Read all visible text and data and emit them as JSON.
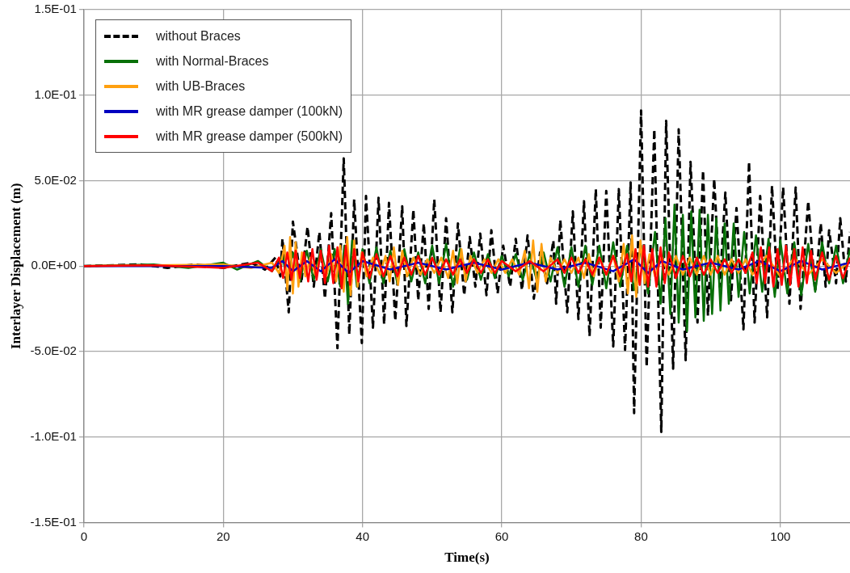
{
  "chart_data": {
    "type": "line",
    "xlabel": "Time(s)",
    "ylabel": "Interlayer Displacement (m)",
    "xlim": [
      0,
      110
    ],
    "xticks": [
      0,
      20,
      40,
      60,
      80,
      100
    ],
    "ylim": [
      -0.15,
      0.15
    ],
    "yticks": [
      {
        "value": -0.15,
        "label": "-1.5E-01"
      },
      {
        "value": -0.1,
        "label": "-1.0E-01"
      },
      {
        "value": -0.05,
        "label": "-5.0E-02"
      },
      {
        "value": 0,
        "label": "0.0E+00"
      },
      {
        "value": 0.05,
        "label": "5.0E-02"
      },
      {
        "value": 0.1,
        "label": "1.0E-01"
      },
      {
        "value": 0.15,
        "label": "1.5E-01"
      }
    ],
    "grid": true,
    "legend": "top left",
    "marker": "none",
    "series": [
      {
        "name": "without Braces",
        "color": "#000000",
        "line_style": "dashed",
        "x": [
          0,
          8,
          12,
          16,
          20,
          24,
          26,
          27.5,
          28.2,
          28.5,
          29.4,
          30.0,
          31.2,
          32.1,
          33,
          33.8,
          34.6,
          35.5,
          36.4,
          37.3,
          38.1,
          38.8,
          39.9,
          40.5,
          41.5,
          42.3,
          43.1,
          43.8,
          44.7,
          45.7,
          46.3,
          47.3,
          48.0,
          48.8,
          49.5,
          50.3,
          51.2,
          52.0,
          52.9,
          53.7,
          54.6,
          55.4,
          56.2,
          56.9,
          57.8,
          58.5,
          59.4,
          60.2,
          61.2,
          62.0,
          62.9,
          63.7,
          64.6,
          65.5,
          66.5,
          67.4,
          67.8,
          68.4,
          69.4,
          70.2,
          71.0,
          71.8,
          72.6,
          73.5,
          74.2,
          75.0,
          76.0,
          76.8,
          77.7,
          78.5,
          79.0,
          80.0,
          80.8,
          81.9,
          82.9,
          83.6,
          84.6,
          85.4,
          86.4,
          87.1,
          88.1,
          88.9,
          89.6,
          90.5,
          91.3,
          92.1,
          92.9,
          93.7,
          94.7,
          95.5,
          96.3,
          97.1,
          98.1,
          98.8,
          99.6,
          100.4,
          101.3,
          102.2,
          102.9,
          104.0,
          105,
          105.8,
          106.5,
          107.0,
          108,
          108.6,
          109.4,
          110
        ],
        "values": [
          0,
          0.001,
          -0.001,
          0.001,
          -0.001,
          0.002,
          -0.002,
          0.005,
          -0.006,
          0.016,
          -0.027,
          0.026,
          -0.01,
          0.023,
          -0.012,
          0.02,
          -0.019,
          0.031,
          -0.048,
          0.063,
          -0.04,
          0.039,
          -0.045,
          0.041,
          -0.036,
          0.04,
          -0.034,
          0.037,
          -0.032,
          0.035,
          -0.035,
          0.033,
          -0.02,
          0.025,
          -0.025,
          0.039,
          -0.027,
          0.028,
          -0.027,
          0.025,
          -0.017,
          0.017,
          -0.012,
          0.019,
          -0.017,
          0.021,
          -0.016,
          0.012,
          -0.012,
          0.016,
          -0.014,
          0.018,
          -0.019,
          0.008,
          -0.01,
          0.015,
          -0.022,
          0.027,
          -0.027,
          0.032,
          -0.031,
          0.038,
          -0.041,
          0.045,
          -0.036,
          0.044,
          -0.047,
          0.045,
          -0.049,
          0.049,
          -0.086,
          0.091,
          -0.059,
          0.08,
          -0.097,
          0.085,
          -0.06,
          0.08,
          -0.055,
          0.061,
          -0.033,
          0.056,
          -0.029,
          0.051,
          -0.012,
          0.043,
          -0.02,
          0.034,
          -0.037,
          0.061,
          -0.033,
          0.041,
          -0.03,
          0.047,
          -0.014,
          0.046,
          -0.022,
          0.046,
          -0.025,
          0.038,
          -0.015,
          0.025,
          -0.012,
          0.021,
          -0.01,
          0.028,
          -0.009,
          0.02
        ]
      },
      {
        "name": "with Normal-Braces",
        "color": "#087008",
        "line_style": "solid",
        "x": [
          0,
          10,
          15,
          20,
          22,
          25,
          27,
          28.5,
          29.2,
          30,
          31,
          32,
          33,
          34,
          35,
          36,
          36.8,
          37.4,
          37.9,
          38.5,
          39.2,
          40,
          41,
          42,
          43,
          44,
          45,
          46,
          47,
          48,
          49,
          50,
          51,
          52,
          53,
          54,
          55,
          56,
          57,
          58,
          59,
          60,
          61,
          62,
          63,
          64,
          65,
          66,
          67,
          68,
          69,
          70,
          71,
          72,
          73,
          74,
          75,
          76,
          77,
          78,
          79,
          80,
          81,
          82,
          82.8,
          83.5,
          84.2,
          84.8,
          85.4,
          86,
          86.6,
          87.2,
          87.8,
          88.4,
          89,
          89.6,
          90.2,
          90.8,
          91.4,
          92,
          92.6,
          93.3,
          94,
          94.8,
          95.6,
          96.5,
          97.4,
          98.3,
          99.2,
          100,
          101,
          102,
          103,
          104,
          105,
          106,
          107,
          108,
          109,
          110
        ],
        "values": [
          0,
          0.001,
          -0.001,
          0.002,
          -0.002,
          0.003,
          -0.003,
          0.006,
          -0.008,
          0.008,
          -0.009,
          0.009,
          -0.008,
          0.01,
          -0.009,
          0.01,
          -0.012,
          0.012,
          -0.022,
          0.015,
          -0.012,
          0.01,
          -0.01,
          0.011,
          -0.01,
          0.009,
          -0.01,
          0.01,
          -0.009,
          0.008,
          -0.01,
          0.012,
          -0.01,
          0.013,
          -0.012,
          0.01,
          -0.008,
          0.008,
          -0.008,
          0.007,
          -0.007,
          0.006,
          -0.006,
          0.007,
          -0.008,
          0.007,
          -0.008,
          0.008,
          -0.009,
          0.011,
          -0.012,
          0.011,
          -0.012,
          0.012,
          -0.011,
          0.012,
          -0.013,
          0.014,
          -0.012,
          0.012,
          -0.014,
          0.012,
          -0.016,
          0.02,
          -0.022,
          0.028,
          -0.028,
          0.036,
          -0.033,
          0.03,
          -0.038,
          0.032,
          -0.03,
          0.033,
          -0.032,
          0.03,
          -0.028,
          0.028,
          -0.026,
          0.025,
          -0.022,
          0.025,
          -0.018,
          0.02,
          -0.016,
          0.018,
          -0.015,
          0.016,
          -0.018,
          0.015,
          -0.016,
          0.014,
          -0.017,
          0.013,
          -0.015,
          0.014,
          -0.01,
          0.012,
          -0.01,
          0.01
        ]
      },
      {
        "name": "with UB-Braces",
        "color": "#ffa010",
        "line_style": "solid",
        "x": [
          0,
          20,
          24,
          27,
          28,
          28.8,
          29.2,
          29.6,
          30,
          30.4,
          30.8,
          31.3,
          31.8,
          32.5,
          33.2,
          34,
          34.8,
          35.5,
          36.2,
          36.8,
          37.3,
          37.8,
          38.3,
          38.8,
          39.3,
          39.9,
          40.6,
          41.5,
          42.5,
          43.3,
          43.9,
          44.5,
          45.1,
          45.7,
          46.4,
          47.3,
          48.3,
          49.3,
          50.3,
          51.3,
          52.3,
          53,
          53.6,
          54.2,
          54.8,
          55.5,
          56.5,
          57.5,
          58.5,
          59.5,
          60.5,
          61.5,
          62.5,
          63.3,
          63.9,
          64.5,
          65.1,
          65.7,
          66.3,
          67,
          68,
          69,
          70,
          71,
          71.8,
          72.5,
          73.2,
          74,
          75,
          76,
          76.8,
          77.5,
          78.1,
          78.7,
          79.3,
          79.9,
          80.5,
          81.2,
          82,
          83,
          84,
          85,
          86,
          87,
          88,
          89,
          90,
          91,
          92,
          93,
          94,
          95,
          96,
          98,
          100,
          102,
          104,
          106,
          108,
          110
        ],
        "values": [
          0,
          0.001,
          -0.001,
          0.002,
          -0.004,
          0.012,
          -0.014,
          0.017,
          -0.016,
          0.014,
          -0.012,
          0.008,
          -0.006,
          0.005,
          -0.005,
          0.006,
          -0.006,
          0.007,
          -0.009,
          0.012,
          -0.015,
          0.017,
          -0.017,
          0.015,
          -0.012,
          0.008,
          -0.006,
          0.005,
          -0.005,
          0.006,
          -0.009,
          0.011,
          -0.011,
          0.009,
          -0.006,
          0.005,
          -0.005,
          0.004,
          -0.004,
          0.005,
          -0.007,
          0.009,
          -0.01,
          0.01,
          -0.009,
          0.006,
          -0.004,
          0.004,
          -0.004,
          0.004,
          -0.004,
          0.004,
          -0.005,
          0.009,
          -0.013,
          0.015,
          -0.015,
          0.013,
          -0.009,
          0.005,
          -0.004,
          0.004,
          -0.004,
          0.005,
          -0.007,
          0.007,
          -0.006,
          0.005,
          -0.005,
          0.006,
          -0.009,
          0.013,
          -0.016,
          0.018,
          -0.018,
          0.015,
          -0.01,
          0.007,
          -0.006,
          0.005,
          -0.005,
          0.006,
          -0.005,
          0.005,
          -0.005,
          0.006,
          -0.005,
          0.006,
          -0.005,
          0.004,
          -0.004,
          0.004,
          -0.005,
          0.006,
          -0.006,
          0.005,
          -0.005,
          0.004,
          -0.004,
          0.003
        ]
      },
      {
        "name": "with MR grease damper (100kN)",
        "color": "#0000c0",
        "line_style": "solid",
        "x": [
          0,
          20,
          27,
          28.5,
          30,
          32,
          34,
          36,
          38,
          40,
          44,
          48,
          52,
          56,
          60,
          64,
          68,
          72,
          76,
          79,
          81,
          83,
          86,
          90,
          94,
          97,
          100,
          103,
          106,
          110
        ],
        "values": [
          0,
          0,
          -0.001,
          0.003,
          -0.003,
          0.003,
          -0.003,
          0.004,
          -0.004,
          0.003,
          -0.002,
          0.002,
          -0.002,
          0.002,
          -0.002,
          0.002,
          -0.002,
          0.002,
          -0.003,
          0.004,
          -0.004,
          0.003,
          -0.002,
          0.002,
          -0.002,
          0.003,
          -0.003,
          0.003,
          -0.002,
          0.002
        ]
      },
      {
        "name": "with MR grease damper (500kN)",
        "color": "#ff0000",
        "line_style": "solid",
        "x": [
          0,
          10,
          20,
          25,
          27,
          28,
          28.6,
          29.2,
          29.8,
          30.4,
          31,
          31.6,
          32.2,
          32.8,
          33.4,
          34,
          34.6,
          35.2,
          35.8,
          36.4,
          37,
          37.6,
          38.2,
          38.8,
          39.4,
          40,
          41,
          42,
          43,
          44,
          45,
          46,
          47,
          48,
          49,
          50,
          51,
          52,
          53,
          54,
          55,
          56,
          57,
          58,
          59,
          60,
          62,
          64,
          66,
          68,
          69,
          70,
          71,
          72,
          73,
          74,
          75,
          76,
          77,
          78,
          78.6,
          79.2,
          79.8,
          80.4,
          81,
          81.6,
          82.2,
          82.8,
          83.4,
          84,
          85,
          86,
          87,
          88,
          89,
          90,
          91,
          92,
          93,
          94,
          95,
          96,
          96.6,
          97.2,
          97.8,
          98.4,
          99,
          99.6,
          100.2,
          100.8,
          101.4,
          102,
          102.6,
          103.2,
          103.8,
          104.4,
          105,
          106,
          107,
          108,
          109,
          110
        ],
        "values": [
          0,
          0.0005,
          -0.001,
          0.002,
          -0.003,
          0.005,
          -0.007,
          0.008,
          -0.008,
          0.009,
          -0.007,
          0.008,
          -0.009,
          0.01,
          -0.008,
          0.009,
          -0.01,
          0.012,
          -0.01,
          0.011,
          -0.013,
          0.012,
          -0.011,
          0.01,
          -0.009,
          0.008,
          -0.007,
          0.007,
          -0.006,
          0.006,
          -0.006,
          0.005,
          -0.005,
          0.006,
          -0.005,
          0.005,
          -0.005,
          0.004,
          -0.005,
          0.004,
          -0.004,
          0.004,
          -0.004,
          0.004,
          -0.004,
          0.003,
          -0.003,
          0.003,
          -0.003,
          0.004,
          -0.004,
          0.005,
          -0.004,
          0.004,
          -0.005,
          0.005,
          -0.005,
          0.006,
          -0.006,
          0.007,
          -0.009,
          0.01,
          -0.011,
          0.012,
          -0.012,
          0.01,
          -0.012,
          0.011,
          -0.01,
          0.008,
          -0.007,
          0.006,
          -0.006,
          0.005,
          -0.005,
          0.004,
          -0.004,
          0.004,
          -0.004,
          0.004,
          -0.004,
          0.008,
          -0.01,
          0.011,
          -0.01,
          0.011,
          -0.012,
          0.01,
          -0.011,
          0.012,
          -0.011,
          0.01,
          -0.012,
          0.011,
          -0.01,
          0.009,
          -0.008,
          0.008,
          -0.008,
          0.006,
          -0.007,
          0.005
        ]
      }
    ]
  }
}
